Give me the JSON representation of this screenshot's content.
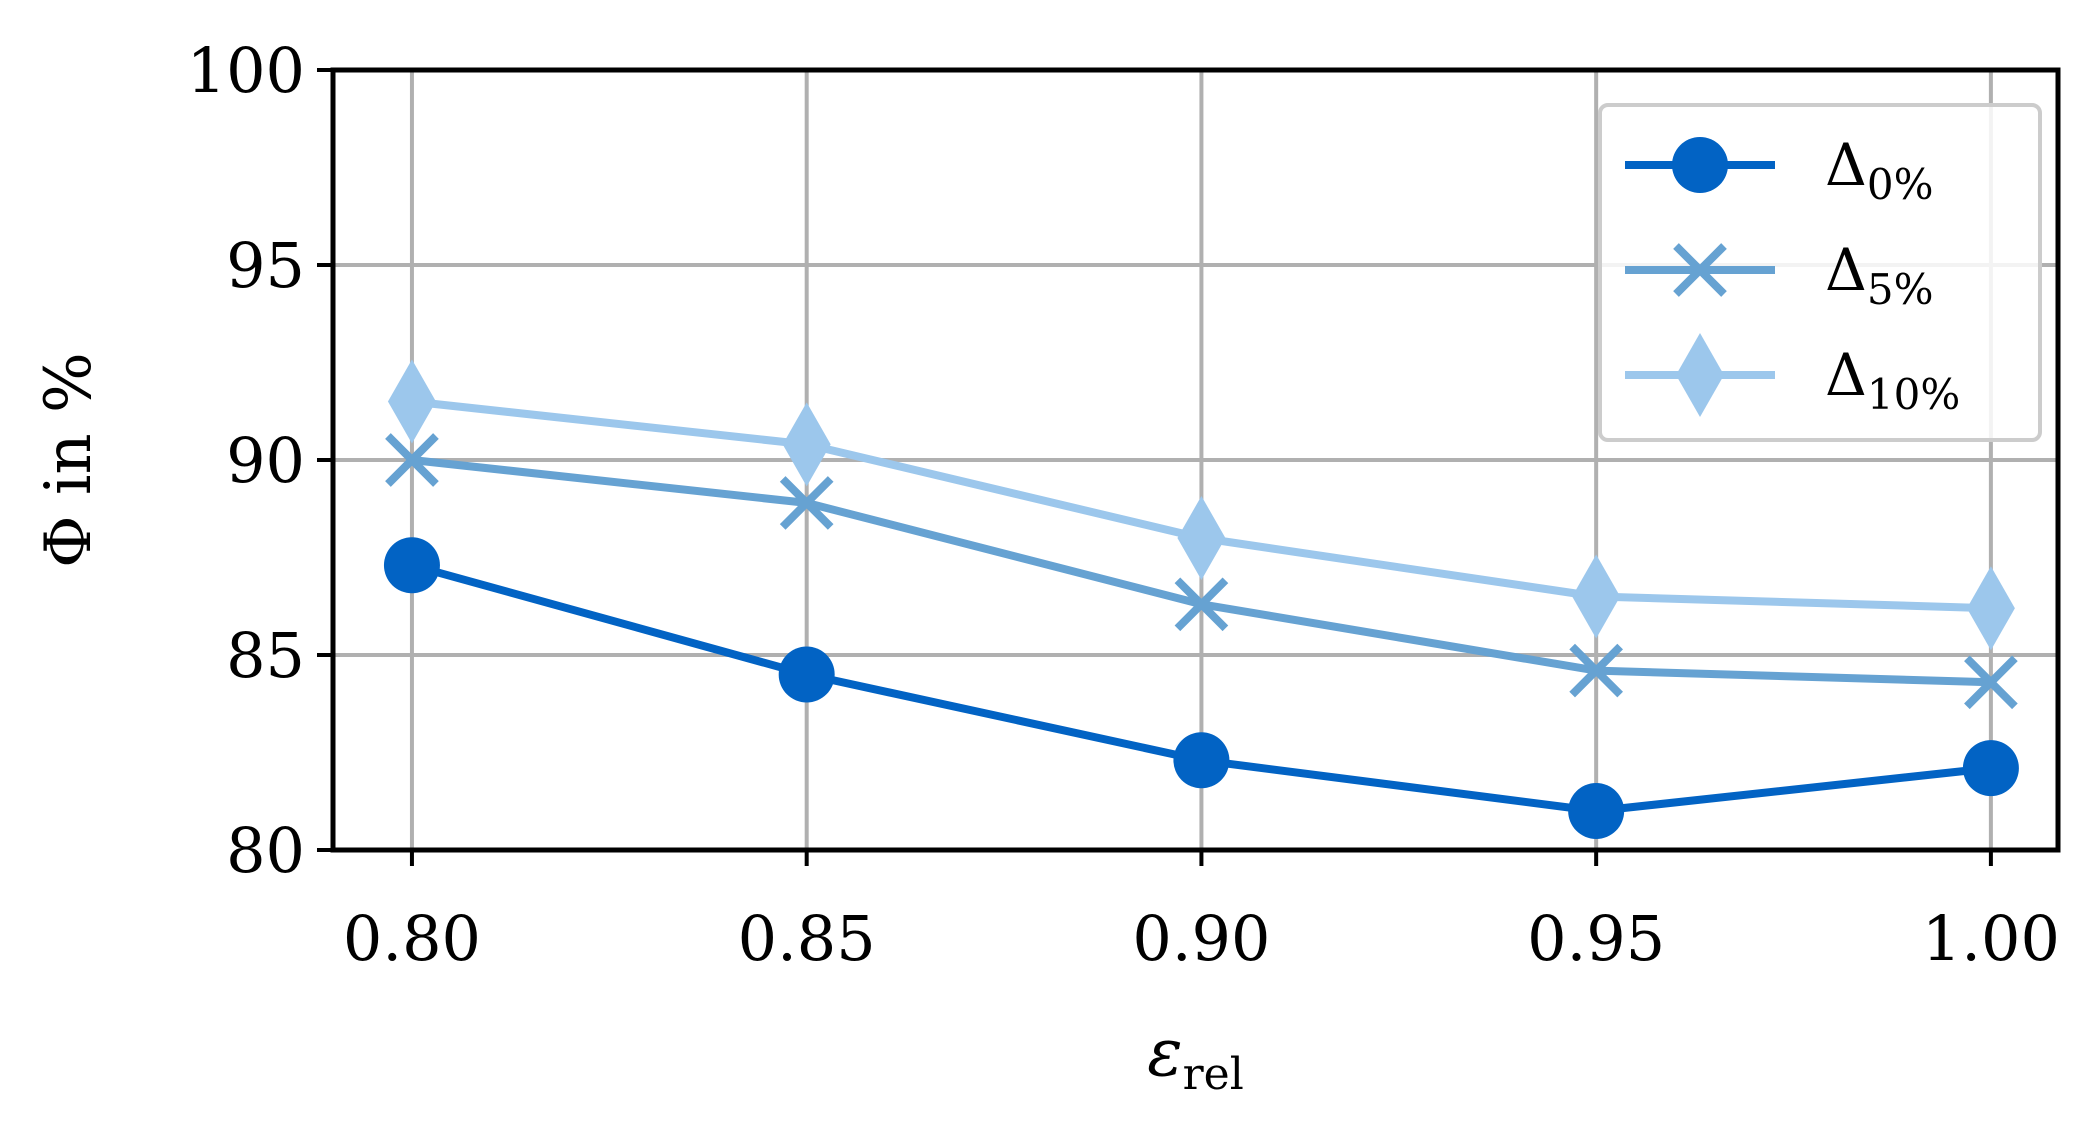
{
  "chart_data": {
    "type": "line",
    "x": [
      0.8,
      0.85,
      0.9,
      0.95,
      1.0
    ],
    "x_tick_labels": [
      "0.80",
      "0.85",
      "0.90",
      "0.95",
      "1.00"
    ],
    "xlim": [
      0.79,
      1.0085
    ],
    "ylim": [
      80,
      100
    ],
    "y_ticks": [
      80,
      85,
      90,
      95,
      100
    ],
    "y_tick_labels": [
      "80",
      "85",
      "90",
      "95",
      "100"
    ],
    "xlabel": {
      "base": "ε",
      "sub": "rel"
    },
    "ylabel": "Φ in %",
    "grid": true,
    "legend_position": "top-right",
    "series": [
      {
        "name": {
          "base": "Δ",
          "sub": "0%"
        },
        "color": "#0263c4",
        "marker": "circle",
        "values": [
          87.3,
          84.5,
          82.3,
          81.0,
          82.1
        ]
      },
      {
        "name": {
          "base": "Δ",
          "sub": "5%"
        },
        "color": "#66a2d2",
        "marker": "x",
        "values": [
          90.0,
          88.9,
          86.3,
          84.6,
          84.3
        ]
      },
      {
        "name": {
          "base": "Δ",
          "sub": "10%"
        },
        "color": "#9cc7ec",
        "marker": "diamond",
        "values": [
          91.5,
          90.4,
          88.0,
          86.5,
          86.2
        ]
      }
    ]
  }
}
